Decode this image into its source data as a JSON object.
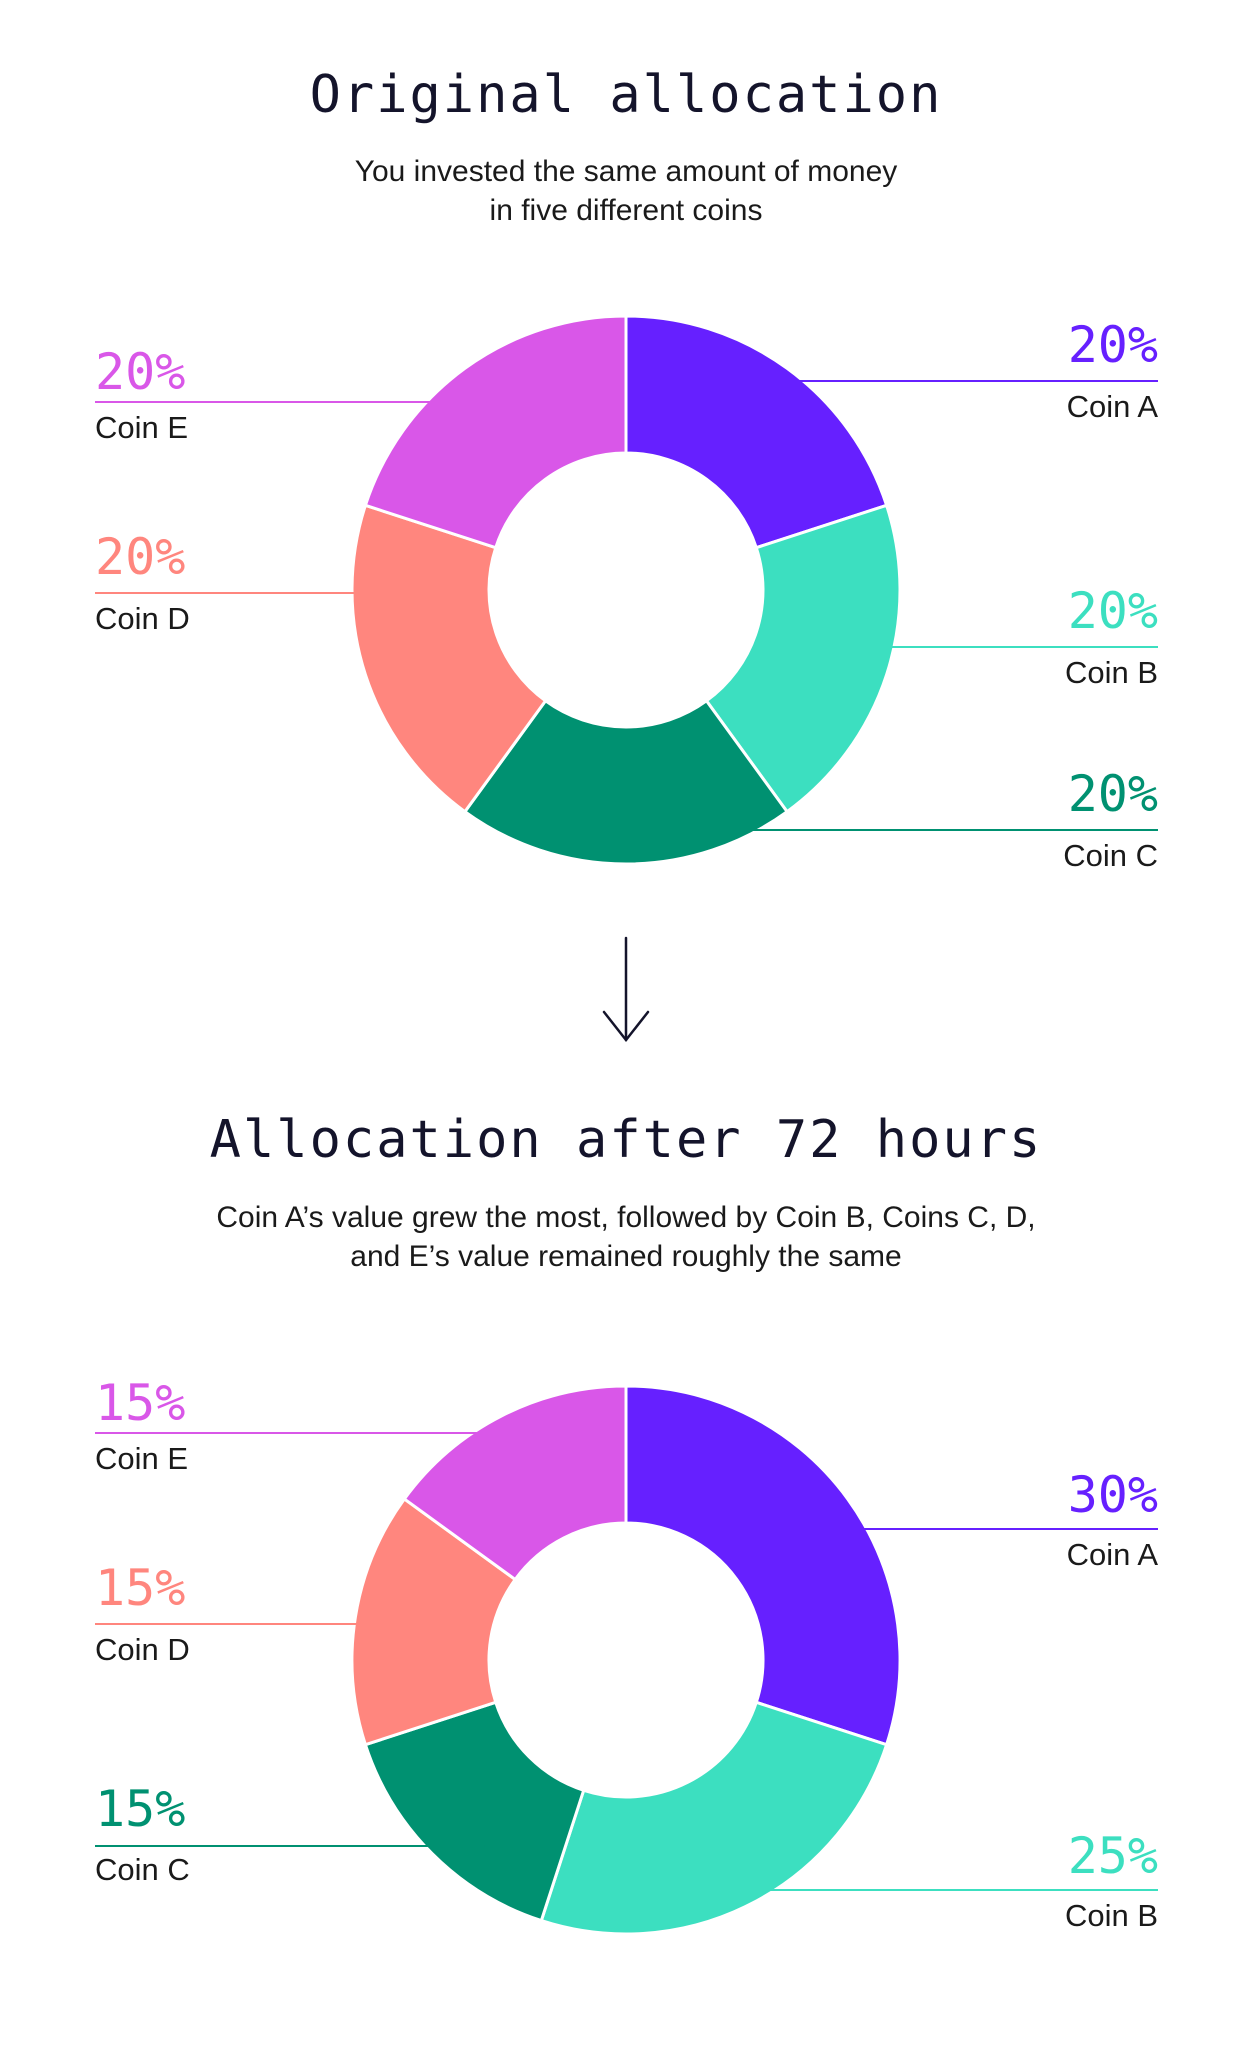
{
  "colors": {
    "coin_a": "#6620FF",
    "coin_b": "#3CDFC0",
    "coin_c": "#009171",
    "coin_d": "#FF867E",
    "coin_e": "#D957E8",
    "text": "#14142B"
  },
  "arrow_icon": "down-arrow-icon",
  "chart_data": [
    {
      "type": "pie",
      "variant": "donut",
      "title": "Original allocation",
      "subtitle": [
        "You invested the same amount of money",
        "in five different coins"
      ],
      "categories": [
        "Coin A",
        "Coin B",
        "Coin C",
        "Coin D",
        "Coin E"
      ],
      "values": [
        20,
        20,
        20,
        20,
        20
      ],
      "labels": [
        "20%",
        "20%",
        "20%",
        "20%",
        "20%"
      ],
      "colors": [
        "#6620FF",
        "#3CDFC0",
        "#009171",
        "#FF867E",
        "#D957E8"
      ]
    },
    {
      "type": "pie",
      "variant": "donut",
      "title": "Allocation after 72 hours",
      "subtitle": [
        "Coin A’s value grew  the most, followed by Coin B, Coins C, D,",
        "and E’s value remained roughly the same"
      ],
      "categories": [
        "Coin A",
        "Coin B",
        "Coin C",
        "Coin D",
        "Coin E"
      ],
      "values": [
        30,
        25,
        15,
        15,
        15
      ],
      "labels": [
        "30%",
        "25%",
        "15%",
        "15%",
        "15%"
      ],
      "colors": [
        "#6620FF",
        "#3CDFC0",
        "#009171",
        "#FF867E",
        "#D957E8"
      ]
    }
  ]
}
